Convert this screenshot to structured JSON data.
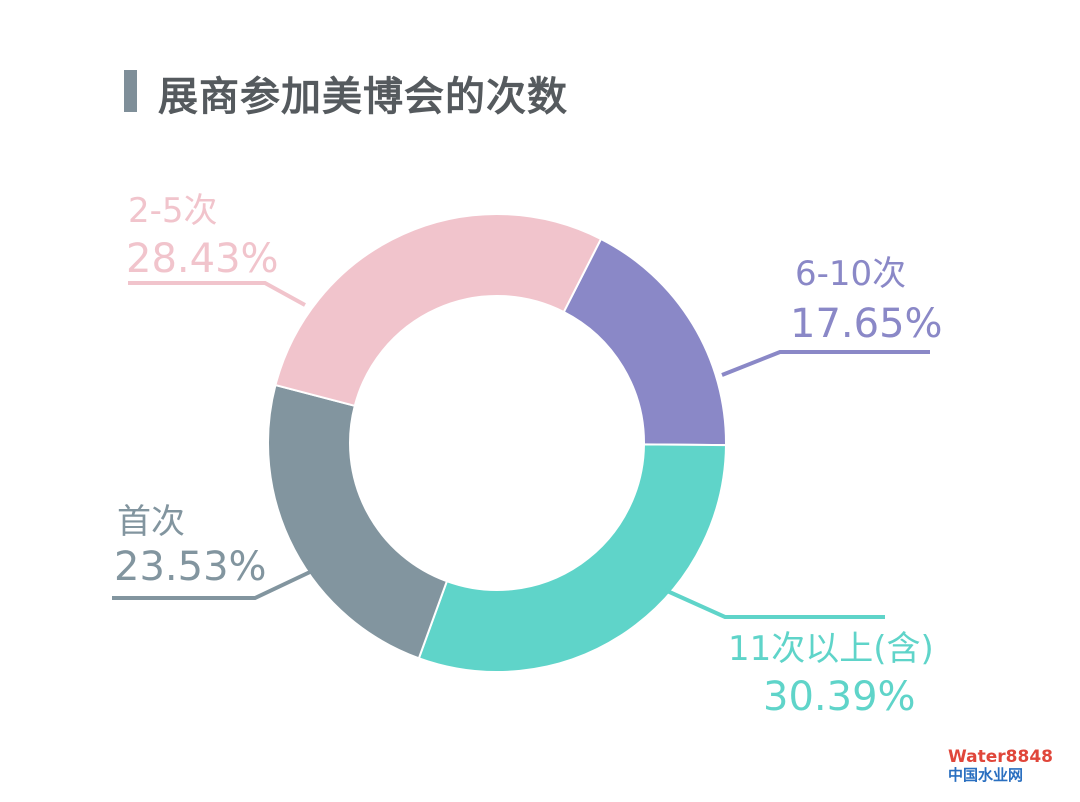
{
  "chart_data": {
    "type": "pie",
    "variant": "donut",
    "title": "展商参加美博会的次数",
    "slices": [
      {
        "label": "6-10次",
        "value": 17.65,
        "value_label": "17.65%",
        "color": "#8a88c7"
      },
      {
        "label": "11次以上(含)",
        "value": 30.39,
        "value_label": "30.39%",
        "color": "#5fd4c9"
      },
      {
        "label": "首次",
        "value": 23.53,
        "value_label": "23.53%",
        "color": "#82959f"
      },
      {
        "label": "2-5次",
        "value": 28.43,
        "value_label": "28.43%",
        "color": "#f1c4cc"
      }
    ],
    "legend": "none"
  },
  "watermark": {
    "line1": "Water8848",
    "line2": "中国水业网"
  }
}
